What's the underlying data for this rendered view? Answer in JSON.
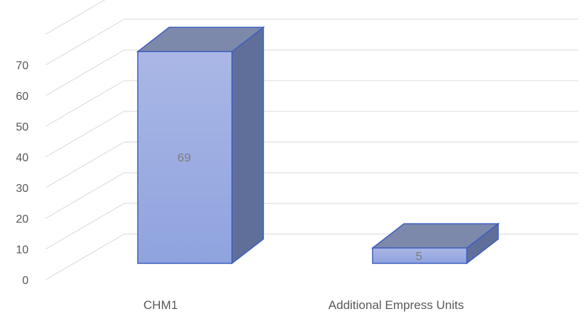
{
  "chart_data": {
    "type": "bar",
    "style": "3d-column",
    "categories": [
      "CHM1",
      "Additional Empress Units"
    ],
    "series": [
      {
        "values": [
          69,
          5
        ],
        "data_labels": [
          "69",
          "5"
        ]
      }
    ],
    "yticks": [
      "0",
      "10",
      "20",
      "30",
      "40",
      "50",
      "60",
      "70"
    ],
    "ylim": [
      0,
      80
    ],
    "grid": true,
    "legend": "none",
    "colors": {
      "bar_front_top": "#aab7e6",
      "bar_front_bottom": "#8fa3de",
      "bar_side": "#5f6f9a",
      "bar_top": "#7d89ab",
      "bar_edge": "#3f5fbf",
      "grid": "#d9d9d9",
      "tick_text": "#595959",
      "category_text": "#595959",
      "data_label_text": "#7f7f7f"
    }
  }
}
